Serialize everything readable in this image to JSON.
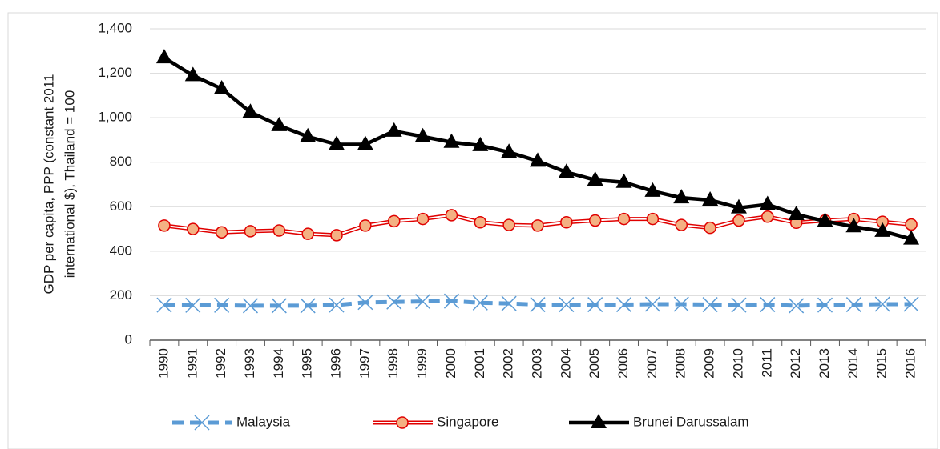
{
  "chart_data": {
    "type": "line",
    "ylabel": [
      "GDP per capita, PPP (constant 2011",
      "international $),  Thailand = 100"
    ],
    "categories": [
      "1990",
      "1991",
      "1992",
      "1993",
      "1994",
      "1995",
      "1996",
      "1997",
      "1998",
      "1999",
      "2000",
      "2001",
      "2002",
      "2003",
      "2004",
      "2005",
      "2006",
      "2007",
      "2008",
      "2009",
      "2010",
      "2011",
      "2012",
      "2013",
      "2014",
      "2015",
      "2016"
    ],
    "series": [
      {
        "name": "Malaysia",
        "color": "#5b9bd5",
        "marker": "x",
        "dash": true,
        "values": [
          158,
          157,
          157,
          155,
          155,
          155,
          158,
          170,
          172,
          174,
          176,
          168,
          165,
          160,
          160,
          160,
          160,
          162,
          162,
          160,
          158,
          160,
          155,
          158,
          160,
          162,
          162
        ]
      },
      {
        "name": "Singapore",
        "color": "#e00000",
        "marker": "circle",
        "dash": false,
        "values": [
          515,
          500,
          485,
          490,
          493,
          478,
          472,
          515,
          535,
          545,
          562,
          530,
          518,
          515,
          530,
          538,
          545,
          545,
          518,
          505,
          538,
          555,
          528,
          538,
          545,
          532,
          520
        ]
      },
      {
        "name": "Brunei Darussalam",
        "color": "#000000",
        "marker": "triangle",
        "dash": false,
        "values": [
          1270,
          1190,
          1130,
          1025,
          965,
          915,
          880,
          880,
          940,
          915,
          890,
          875,
          845,
          805,
          755,
          720,
          710,
          670,
          640,
          630,
          595,
          610,
          565,
          535,
          510,
          490,
          455
        ]
      }
    ],
    "ylim": [
      0,
      1400
    ],
    "yticks": [
      0,
      200,
      400,
      600,
      800,
      {
        "value": 1000,
        "label": "1,000"
      },
      {
        "value": 1200,
        "label": "1,200"
      },
      {
        "value": 1400,
        "label": "1,400"
      }
    ],
    "grid": true,
    "legend": "bottom"
  }
}
